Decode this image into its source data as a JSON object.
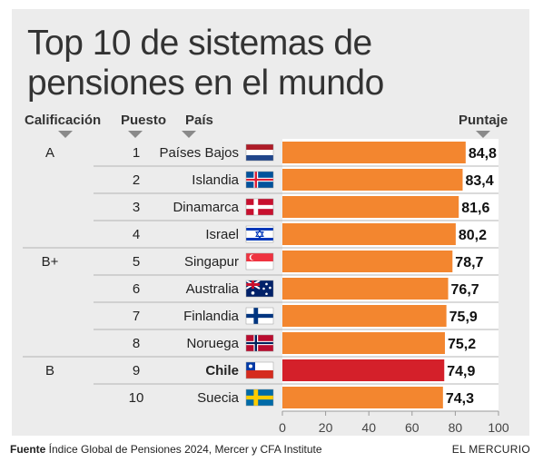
{
  "chart_data": {
    "type": "bar",
    "orientation": "horizontal",
    "title": "Top 10 de sistemas de pensiones en el mundo",
    "column_headers": {
      "grade": "Calificación",
      "rank": "Puesto",
      "country": "País",
      "score": "Puntaje"
    },
    "rows": [
      {
        "grade": "A",
        "rank": "1",
        "country": "Países Bajos",
        "value": 84.8,
        "label": "84,8",
        "flag": "netherlands",
        "highlight": false
      },
      {
        "grade": "",
        "rank": "2",
        "country": "Islandia",
        "value": 83.4,
        "label": "83,4",
        "flag": "iceland",
        "highlight": false
      },
      {
        "grade": "",
        "rank": "3",
        "country": "Dinamarca",
        "value": 81.6,
        "label": "81,6",
        "flag": "denmark",
        "highlight": false
      },
      {
        "grade": "",
        "rank": "4",
        "country": "Israel",
        "value": 80.2,
        "label": "80,2",
        "flag": "israel",
        "highlight": false
      },
      {
        "grade": "B+",
        "rank": "5",
        "country": "Singapur",
        "value": 78.7,
        "label": "78,7",
        "flag": "singapore",
        "highlight": false
      },
      {
        "grade": "",
        "rank": "6",
        "country": "Australia",
        "value": 76.7,
        "label": "76,7",
        "flag": "australia",
        "highlight": false
      },
      {
        "grade": "",
        "rank": "7",
        "country": "Finlandia",
        "value": 75.9,
        "label": "75,9",
        "flag": "finland",
        "highlight": false
      },
      {
        "grade": "",
        "rank": "8",
        "country": "Noruega",
        "value": 75.2,
        "label": "75,2",
        "flag": "norway",
        "highlight": false
      },
      {
        "grade": "B",
        "rank": "9",
        "country": "Chile",
        "value": 74.9,
        "label": "74,9",
        "flag": "chile",
        "highlight": true
      },
      {
        "grade": "",
        "rank": "10",
        "country": "Suecia",
        "value": 74.3,
        "label": "74,3",
        "flag": "sweden",
        "highlight": false
      }
    ],
    "group_breaks_after_rank": [
      4,
      8
    ],
    "xlim": [
      0,
      100
    ],
    "xticks": [
      "0",
      "20",
      "40",
      "60",
      "80",
      "100"
    ],
    "grid": false,
    "colors": {
      "bar": "#f3862f",
      "highlight": "#d4202a"
    }
  },
  "footer": {
    "source_label": "Fuente",
    "source_text": " Índice Global de Pensiones 2024, Mercer y CFA Institute",
    "brand": "EL MERCURIO"
  }
}
